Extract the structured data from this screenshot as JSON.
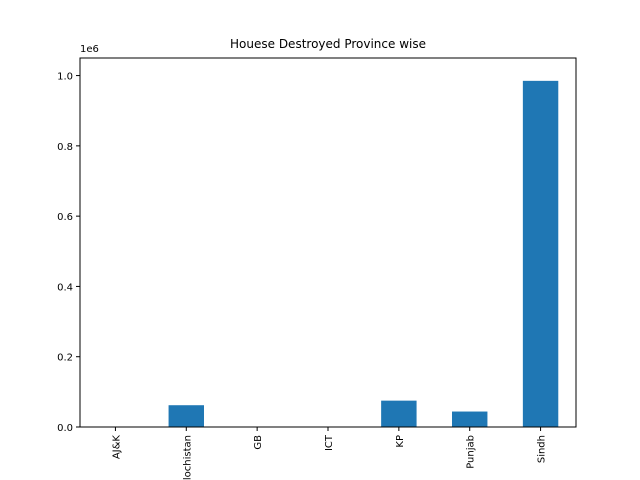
{
  "chart_data": {
    "type": "bar",
    "title": "Houese Destroyed Province wise",
    "xlabel": "",
    "ylabel": "",
    "categories": [
      "AJ&K",
      "Balochistan",
      "GB",
      "ICT",
      "KP",
      "Punjab",
      "Sindh"
    ],
    "values": [
      300,
      62000,
      500,
      50,
      75000,
      44000,
      985000
    ],
    "ylim": [
      0,
      1050000
    ],
    "y_ticks": [
      0,
      200000,
      400000,
      600000,
      800000,
      1000000
    ],
    "y_tick_labels": [
      "0.0",
      "0.2",
      "0.4",
      "0.6",
      "0.8",
      "1.0"
    ],
    "y_offset_label": "1e6",
    "bar_color": "#1f77b4",
    "grid": false,
    "legend": "none"
  }
}
